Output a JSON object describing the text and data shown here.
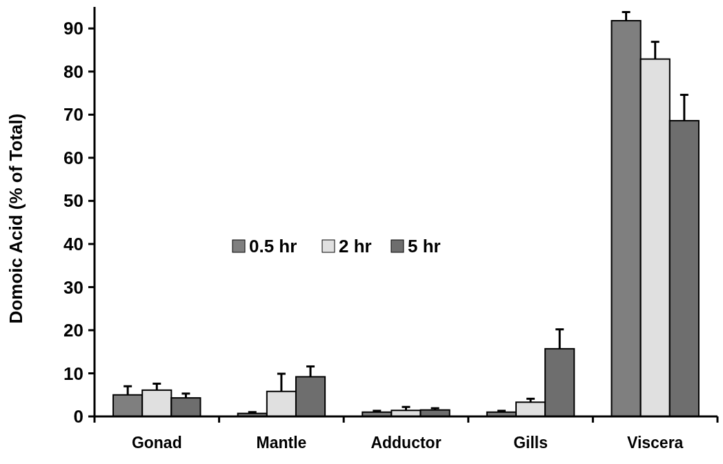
{
  "chart_data": {
    "type": "bar",
    "ylabel": "Domoic Acid (% of Total)",
    "categories": [
      "Gonad",
      "Mantle",
      "Adductor",
      "Gills",
      "Viscera"
    ],
    "series": [
      {
        "name": "0.5 hr",
        "color": "#7f7f7f",
        "values": [
          5.0,
          0.7,
          1.0,
          1.0,
          91.8
        ],
        "errors": [
          2.0,
          0.3,
          0.3,
          0.3,
          2.0
        ]
      },
      {
        "name": "2 hr",
        "color": "#e0e0e0",
        "values": [
          6.1,
          5.8,
          1.4,
          3.3,
          82.9
        ],
        "errors": [
          1.5,
          4.1,
          0.8,
          0.8,
          4.0
        ]
      },
      {
        "name": "5 hr",
        "color": "#6e6e6e",
        "values": [
          4.3,
          9.2,
          1.5,
          15.7,
          68.6
        ],
        "errors": [
          1.0,
          2.4,
          0.4,
          4.5,
          6.0
        ]
      }
    ],
    "ylim": [
      0,
      95
    ],
    "yticks": [
      0,
      10,
      20,
      30,
      40,
      50,
      60,
      70,
      80,
      90
    ],
    "grid": false,
    "legend": "left"
  }
}
